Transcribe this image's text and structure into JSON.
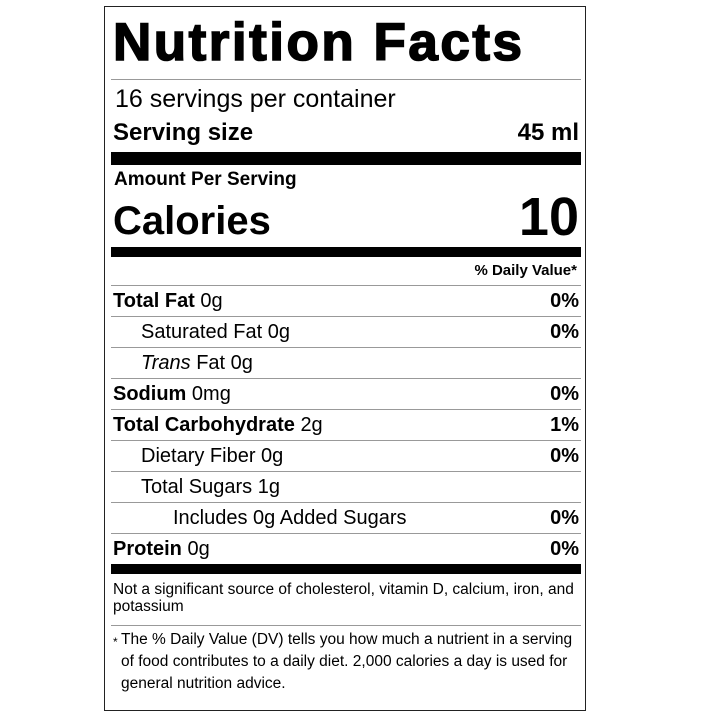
{
  "title": "Nutrition Facts",
  "servings_per_container": "16 servings per container",
  "serving_size": {
    "label": "Serving size",
    "value": "45 ml"
  },
  "amount_per_serving": "Amount Per Serving",
  "calories": {
    "label": "Calories",
    "value": "10"
  },
  "daily_value_header": "% Daily Value*",
  "nutrients": [
    {
      "name": "Total Fat",
      "amount": "0g",
      "dv": "0%"
    },
    {
      "name": "Saturated Fat",
      "amount": "0g",
      "dv": "0%"
    },
    {
      "name_italic": "Trans",
      "name": "Fat",
      "amount": "0g",
      "dv": ""
    },
    {
      "name": "Sodium",
      "amount": "0mg",
      "dv": "0%"
    },
    {
      "name": "Total Carbohydrate",
      "amount": "2g",
      "dv": "1%"
    },
    {
      "name": "Dietary Fiber",
      "amount": "0g",
      "dv": "0%"
    },
    {
      "name": "Total Sugars",
      "amount": "1g",
      "dv": ""
    },
    {
      "name": "Includes 0g Added Sugars",
      "amount": "",
      "dv": "0%"
    },
    {
      "name": "Protein",
      "amount": "0g",
      "dv": "0%"
    }
  ],
  "note": "Not a significant source of cholesterol, vitamin D, calcium, iron, and potassium",
  "footnote": {
    "marker": "*",
    "text": "The % Daily Value (DV) tells you how much a nutrient in a serving of food contributes to a daily diet. 2,000 calories a day is used for general nutrition advice."
  }
}
